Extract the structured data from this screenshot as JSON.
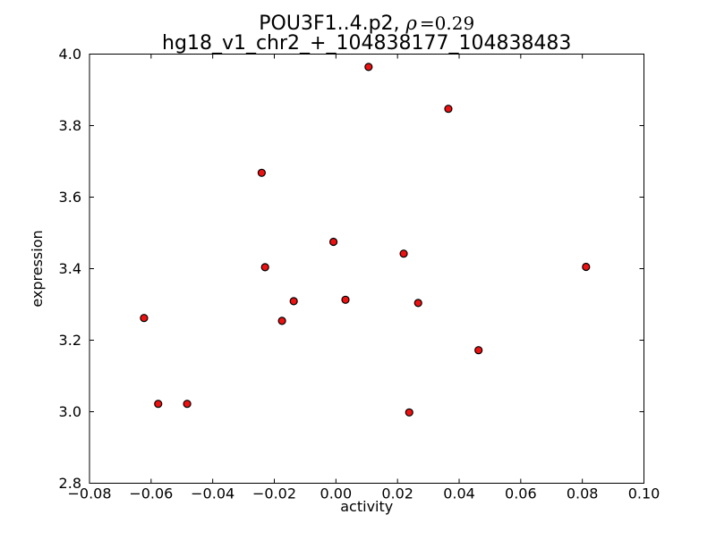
{
  "header": {
    "title_prefix": "POU3F1..4.p2,",
    "rho_symbol": "ρ",
    "rho_equals": "=0.29",
    "subtitle": "hg18_v1_chr2_+_104838177_104838483"
  },
  "chart_data": {
    "type": "scatter",
    "title": "POU3F1..4.p2, ρ=0.29",
    "subtitle": "hg18_v1_chr2_+_104838177_104838483",
    "rho": 0.29,
    "xlabel": "activity",
    "ylabel": "expression",
    "xlim": [
      -0.08,
      0.1
    ],
    "ylim": [
      2.8,
      4.0
    ],
    "xticks": [
      -0.08,
      -0.06,
      -0.04,
      -0.02,
      0.0,
      0.02,
      0.04,
      0.06,
      0.08,
      0.1
    ],
    "xtick_labels": [
      "−0.08",
      "−0.06",
      "−0.04",
      "−0.02",
      "0.00",
      "0.02",
      "0.04",
      "0.06",
      "0.08",
      "0.10"
    ],
    "yticks": [
      2.8,
      3.0,
      3.2,
      3.4,
      3.6,
      3.8,
      4.0
    ],
    "ytick_labels": [
      "2.8",
      "3.0",
      "3.2",
      "3.4",
      "3.6",
      "3.8",
      "4.0"
    ],
    "grid": false,
    "legend": "none",
    "marker": {
      "shape": "circle",
      "fill_color": "#ee1111",
      "edge_color": "#000000",
      "radius_px": 4
    },
    "points": [
      [
        -0.0623,
        3.262
      ],
      [
        -0.0577,
        3.022
      ],
      [
        -0.0483,
        3.022
      ],
      [
        -0.0241,
        3.668
      ],
      [
        -0.023,
        3.404
      ],
      [
        -0.0175,
        3.254
      ],
      [
        -0.0137,
        3.309
      ],
      [
        -0.0008,
        3.475
      ],
      [
        0.0031,
        3.313
      ],
      [
        0.0106,
        3.964
      ],
      [
        0.022,
        3.442
      ],
      [
        0.0238,
        2.998
      ],
      [
        0.0267,
        3.304
      ],
      [
        0.0365,
        3.847
      ],
      [
        0.0463,
        3.172
      ],
      [
        0.0812,
        3.405
      ]
    ]
  }
}
